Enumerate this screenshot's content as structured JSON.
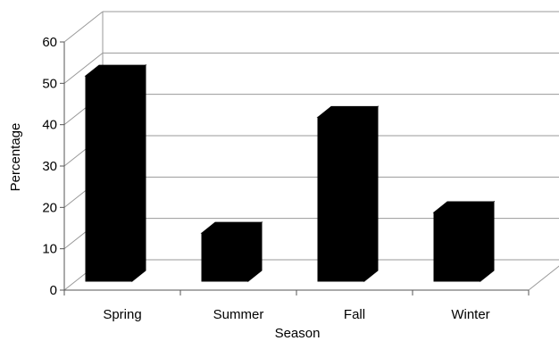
{
  "chart_data": {
    "type": "bar",
    "categories": [
      "Spring",
      "Summer",
      "Fall",
      "Winter"
    ],
    "values": [
      52,
      14,
      42,
      19
    ],
    "title": "",
    "xlabel": "Season",
    "ylabel": "Percentage",
    "ylim": [
      0,
      60
    ],
    "yticks": [
      0,
      10,
      20,
      30,
      40,
      50,
      60
    ],
    "yticklabels": [
      "0",
      "10",
      "20",
      "30",
      "40",
      "50",
      "60"
    ],
    "grid": true,
    "legend": "none",
    "style": "3d",
    "colors": {
      "bar": "#000000",
      "grid": "#999999",
      "axis": "#555555"
    }
  }
}
